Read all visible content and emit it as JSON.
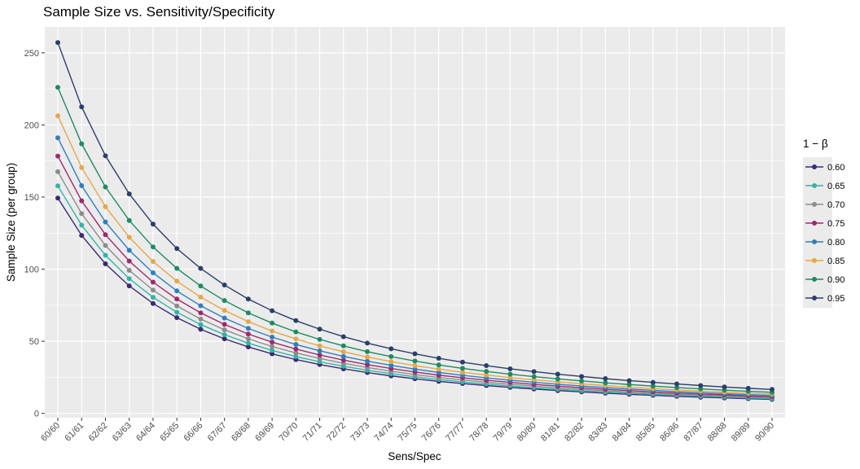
{
  "chart_data": {
    "type": "line",
    "title": "Sample Size vs. Sensitivity/Specificity",
    "xlabel": "Sens/Spec",
    "ylabel": "Sample Size (per group)",
    "ylim": [
      -3,
      268
    ],
    "yticks": [
      0,
      50,
      100,
      150,
      200,
      250
    ],
    "grid": true,
    "legend_position": "right",
    "legend_title": "1 − β",
    "categories": [
      "60/60",
      "61/61",
      "62/62",
      "63/63",
      "64/64",
      "65/65",
      "66/66",
      "67/67",
      "68/68",
      "69/69",
      "70/70",
      "71/71",
      "72/72",
      "73/73",
      "74/74",
      "75/75",
      "76/76",
      "77/77",
      "78/78",
      "79/79",
      "80/80",
      "81/81",
      "82/82",
      "83/83",
      "84/84",
      "85/85",
      "86/86",
      "87/87",
      "88/88",
      "89/89",
      "90/90"
    ],
    "series": [
      {
        "name": "0.60",
        "color": "#3b2a73",
        "values": [
          149.3,
          123.4,
          103.7,
          88.4,
          76.2,
          66.4,
          58.3,
          51.7,
          46.1,
          41.3,
          37.3,
          33.9,
          30.9,
          28.3,
          26.0,
          24.0,
          22.2,
          20.7,
          19.3,
          18.0,
          16.9,
          15.8,
          14.9,
          14.0,
          13.2,
          12.5,
          11.8,
          11.2,
          10.7,
          10.2,
          9.7
        ]
      },
      {
        "name": "0.65",
        "color": "#2fb5a7",
        "values": [
          157.8,
          130.5,
          109.6,
          93.4,
          80.5,
          70.1,
          61.6,
          54.6,
          48.7,
          43.7,
          39.4,
          35.8,
          32.7,
          29.9,
          27.5,
          25.4,
          23.5,
          21.8,
          20.4,
          19.0,
          17.8,
          16.7,
          15.7,
          14.8,
          14.0,
          13.2,
          12.5,
          11.9,
          11.3,
          10.7,
          10.2
        ]
      },
      {
        "name": "0.70",
        "color": "#8c8c8c",
        "values": [
          167.6,
          138.5,
          116.4,
          99.2,
          85.5,
          74.5,
          65.4,
          58.0,
          51.7,
          46.4,
          41.9,
          38.1,
          34.7,
          31.8,
          29.2,
          26.9,
          24.9,
          23.2,
          21.6,
          20.2,
          18.9,
          17.7,
          16.7,
          15.7,
          14.8,
          14.0,
          13.3,
          12.6,
          12.0,
          11.4,
          10.9
        ]
      },
      {
        "name": "0.75",
        "color": "#9c2a6e",
        "values": [
          178.4,
          147.4,
          123.9,
          105.6,
          91.0,
          79.3,
          69.7,
          61.7,
          55.0,
          49.4,
          44.6,
          40.5,
          36.9,
          33.8,
          31.1,
          28.7,
          26.5,
          24.7,
          23.0,
          21.5,
          20.1,
          18.9,
          17.8,
          16.7,
          15.8,
          14.9,
          14.1,
          13.4,
          12.8,
          12.1,
          11.6
        ]
      },
      {
        "name": "0.80",
        "color": "#2e7fbd",
        "values": [
          191.1,
          157.9,
          132.7,
          113.1,
          97.5,
          84.9,
          74.6,
          66.1,
          58.9,
          52.9,
          47.8,
          43.4,
          39.5,
          36.2,
          33.3,
          30.7,
          28.4,
          26.4,
          24.6,
          23.0,
          21.6,
          20.2,
          19.0,
          17.9,
          16.9,
          16.0,
          15.1,
          14.4,
          13.7,
          13.0,
          12.4
        ]
      },
      {
        "name": "0.85",
        "color": "#e3a84a",
        "values": [
          206.3,
          170.5,
          143.3,
          122.1,
          105.3,
          91.7,
          80.6,
          71.4,
          63.6,
          57.1,
          51.6,
          46.8,
          42.7,
          39.1,
          35.9,
          33.1,
          30.7,
          28.5,
          26.6,
          24.8,
          23.3,
          21.9,
          20.5,
          19.3,
          18.2,
          17.2,
          16.3,
          15.5,
          14.7,
          14.0,
          13.4
        ]
      },
      {
        "name": "0.90",
        "color": "#1f8a63",
        "values": [
          226.1,
          186.9,
          157.0,
          133.8,
          115.4,
          100.5,
          88.3,
          78.2,
          69.7,
          62.6,
          56.5,
          51.3,
          46.8,
          42.8,
          39.4,
          36.3,
          33.6,
          31.2,
          29.1,
          27.2,
          25.5,
          23.9,
          22.5,
          21.2,
          20.0,
          18.9,
          17.9,
          17.0,
          16.1,
          15.3,
          14.6
        ]
      },
      {
        "name": "0.95",
        "color": "#2b3f6b",
        "values": [
          257.1,
          212.5,
          178.6,
          152.2,
          131.2,
          114.3,
          100.5,
          89.0,
          79.3,
          71.2,
          64.3,
          58.4,
          53.2,
          48.7,
          44.8,
          41.3,
          38.2,
          35.5,
          33.1,
          30.9,
          29.0,
          27.2,
          25.6,
          24.1,
          22.7,
          21.5,
          20.4,
          19.3,
          18.3,
          17.4,
          16.6
        ]
      }
    ]
  }
}
